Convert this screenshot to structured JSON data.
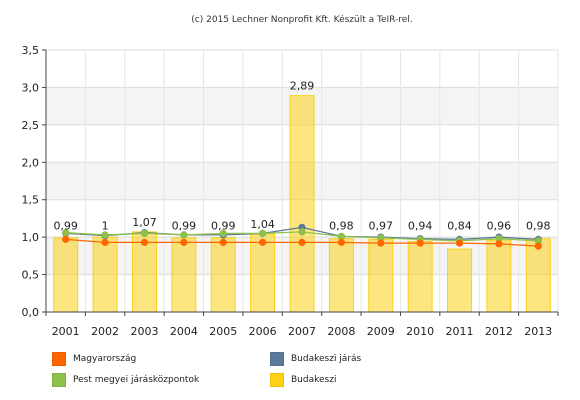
{
  "chart_data": {
    "type": "bar",
    "subtitle": "(c) 2015 Lechner Nonprofit Kft. Készült a TeIR-rel.",
    "categories": [
      "2001",
      "2002",
      "2003",
      "2004",
      "2005",
      "2006",
      "2007",
      "2008",
      "2009",
      "2010",
      "2011",
      "2012",
      "2013"
    ],
    "ylim": [
      0,
      3.5
    ],
    "yticks": [
      "0,0",
      "0,5",
      "1,0",
      "1,5",
      "2,0",
      "2,5",
      "3,0",
      "3,5"
    ],
    "grid": true,
    "legend_placement": "bottom",
    "series": [
      {
        "name": "Budakeszi",
        "type": "bar",
        "color": "#fcd116",
        "values": [
          0.99,
          1,
          1.07,
          0.99,
          0.99,
          1.04,
          2.89,
          0.98,
          0.97,
          0.94,
          0.84,
          0.96,
          0.98
        ],
        "labels": [
          "0,99",
          "1",
          "1,07",
          "0,99",
          "0,99",
          "1,04",
          "2,89",
          "0,98",
          "0,97",
          "0,94",
          "0,84",
          "0,96",
          "0,98"
        ]
      },
      {
        "name": "Magyarország",
        "type": "line",
        "color": "#ff6600",
        "values": [
          0.97,
          0.93,
          0.93,
          0.93,
          0.93,
          0.93,
          0.93,
          0.93,
          0.92,
          0.92,
          0.92,
          0.91,
          0.88
        ]
      },
      {
        "name": "Budakeszi járás",
        "type": "line",
        "color": "#5b7a99",
        "values": [
          1.05,
          1.02,
          1.06,
          1.03,
          1.03,
          1.05,
          1.13,
          1.01,
          1.0,
          0.98,
          0.97,
          1.0,
          0.97
        ]
      },
      {
        "name": "Pest megyei járásközpontok",
        "type": "line",
        "color": "#8fc04b",
        "values": [
          1.06,
          1.03,
          1.05,
          1.03,
          1.05,
          1.05,
          1.07,
          1.01,
          0.99,
          0.97,
          0.95,
          0.98,
          0.95
        ]
      }
    ]
  }
}
